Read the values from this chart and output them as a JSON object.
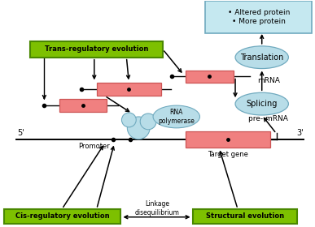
{
  "green_box_color": "#7dc000",
  "green_box_edge": "#4a8800",
  "pink_box_color": "#f08080",
  "pink_box_edge": "#cc5555",
  "blue_ellipse_color": "#b8dde8",
  "blue_ellipse_edge": "#70aabf",
  "light_blue_box_color": "#c5e8f0",
  "light_blue_box_edge": "#70aabf",
  "labels": {
    "trans": "Trans-regulatory evolution",
    "cis": "Cis-regulatory evolution",
    "structural": "Structural evolution",
    "promoter": "Promoter",
    "target_gene": "Target gene",
    "linkage": "Linkage\ndisequilibrium",
    "rna_pol": "RNA\npolymerase",
    "splicing": "Splicing",
    "translation": "Translation",
    "mrna": "mRNA",
    "premrna": "pre- mRNA",
    "altered": "• Altered protein\n• More protein",
    "five_prime": "5'",
    "three_prime": "3'"
  }
}
